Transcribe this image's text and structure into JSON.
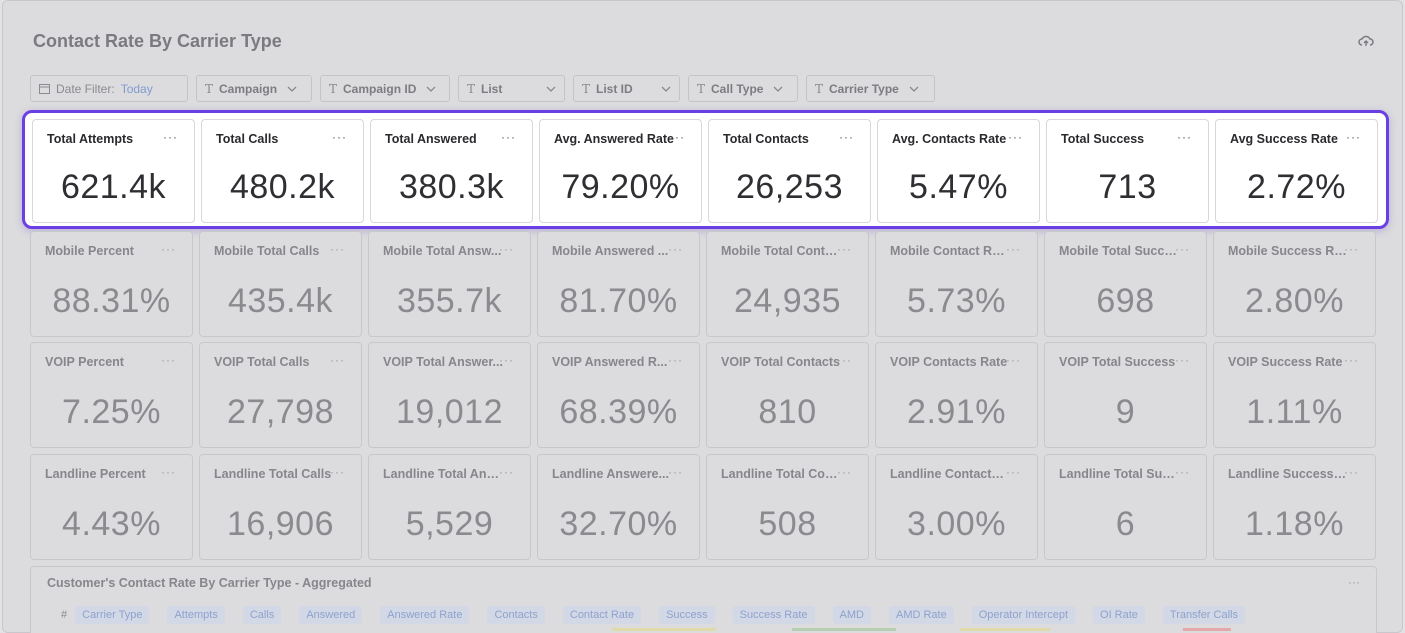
{
  "header": {
    "title": "Contact Rate By Carrier Type"
  },
  "filters": {
    "date_label": "Date Filter:",
    "date_value": "Today",
    "items": [
      "Campaign",
      "Campaign ID",
      "List",
      "List ID",
      "Call Type",
      "Carrier Type"
    ]
  },
  "rows": [
    {
      "cards": [
        {
          "title": "Total Attempts",
          "value": "621.4k"
        },
        {
          "title": "Total Calls",
          "value": "480.2k"
        },
        {
          "title": "Total Answered",
          "value": "380.3k"
        },
        {
          "title": "Avg. Answered Rate",
          "value": "79.20%"
        },
        {
          "title": "Total Contacts",
          "value": "26,253"
        },
        {
          "title": "Avg. Contacts Rate",
          "value": "5.47%"
        },
        {
          "title": "Total Success",
          "value": "713"
        },
        {
          "title": "Avg Success Rate",
          "value": "2.72%"
        }
      ]
    },
    {
      "cards": [
        {
          "title": "Mobile Percent",
          "value": "88.31%"
        },
        {
          "title": "Mobile Total Calls",
          "value": "435.4k"
        },
        {
          "title": "Mobile Total Answ...",
          "value": "355.7k"
        },
        {
          "title": "Mobile Answered ...",
          "value": "81.70%"
        },
        {
          "title": "Mobile Total Conta...",
          "value": "24,935"
        },
        {
          "title": "Mobile Contact Rate",
          "value": "5.73%"
        },
        {
          "title": "Mobile Total Success",
          "value": "698"
        },
        {
          "title": "Mobile Success Rate",
          "value": "2.80%"
        }
      ]
    },
    {
      "cards": [
        {
          "title": "VOIP Percent",
          "value": "7.25%"
        },
        {
          "title": "VOIP Total Calls",
          "value": "27,798"
        },
        {
          "title": "VOIP Total Answer...",
          "value": "19,012"
        },
        {
          "title": "VOIP Answered R...",
          "value": "68.39%"
        },
        {
          "title": "VOIP Total Contacts",
          "value": "810"
        },
        {
          "title": "VOIP Contacts Rate",
          "value": "2.91%"
        },
        {
          "title": "VOIP Total Success",
          "value": "9"
        },
        {
          "title": "VOIP Success Rate",
          "value": "1.11%"
        }
      ]
    },
    {
      "cards": [
        {
          "title": "Landline Percent",
          "value": "4.43%"
        },
        {
          "title": "Landline Total Calls",
          "value": "16,906"
        },
        {
          "title": "Landline Total Ans...",
          "value": "5,529"
        },
        {
          "title": "Landline Answere...",
          "value": "32.70%"
        },
        {
          "title": "Landline Total Con...",
          "value": "508"
        },
        {
          "title": "Landline Contacts ...",
          "value": "3.00%"
        },
        {
          "title": "Landline Total Succ...",
          "value": "6"
        },
        {
          "title": "Landline Success R...",
          "value": "1.18%"
        }
      ]
    }
  ],
  "card_menu": "···",
  "table": {
    "title": "Customer's Contact Rate By Carrier Type - Aggregated",
    "hash": "#",
    "columns": [
      "Carrier Type",
      "Attempts",
      "Calls",
      "Answered",
      "Answered Rate",
      "Contacts",
      "Contact Rate",
      "Success",
      "Success Rate",
      "AMD",
      "AMD Rate",
      "Operator Intercept",
      "OI Rate",
      "Transfer Calls"
    ]
  },
  "colors": {
    "highlight_border": "#6a3fe3",
    "date_value": "#7f9bd0",
    "column_pill": "#d2d8e6"
  }
}
